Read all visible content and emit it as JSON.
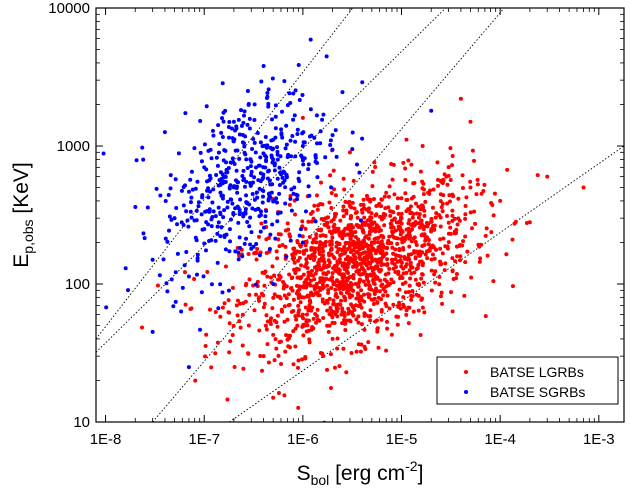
{
  "chart_data": {
    "type": "scatter",
    "xlabel_main": "S",
    "xlabel_sub": "bol",
    "xlabel_units": " [erg cm",
    "xlabel_sup": "-2",
    "xlabel_close": "]",
    "ylabel_main": "E",
    "ylabel_sub": "p,obs",
    "ylabel_units": " [KeV]",
    "x_scale": "log",
    "y_scale": "log",
    "xlim": [
      8e-09,
      0.0018
    ],
    "ylim": [
      10,
      10000
    ],
    "x_ticks": [
      {
        "value": 1e-08,
        "label": "1E-8"
      },
      {
        "value": 1e-07,
        "label": "1E-7"
      },
      {
        "value": 1e-06,
        "label": "1E-6"
      },
      {
        "value": 1e-05,
        "label": "1E-5"
      },
      {
        "value": 0.0001,
        "label": "1E-4"
      },
      {
        "value": 0.001,
        "label": "1E-3"
      }
    ],
    "y_ticks": [
      {
        "value": 10,
        "label": "10"
      },
      {
        "value": 100,
        "label": "100"
      },
      {
        "value": 1000,
        "label": "1000"
      },
      {
        "value": 10000,
        "label": "10000"
      }
    ],
    "grid": false,
    "legend_position": "bottom-right",
    "series": [
      {
        "name": "BATSE LGRBs",
        "color": "#ff0000",
        "n_points": 1500,
        "center_log_x": -5.45,
        "center_log_y": 2.15,
        "spread_log_x": 0.58,
        "spread_log_y": 0.3,
        "correlation": 0.45,
        "sample_points": [
          [
            2e-06,
            120
          ],
          [
            5e-06,
            200
          ],
          [
            1e-05,
            300
          ],
          [
            3e-06,
            80
          ],
          [
            2e-05,
            250
          ],
          [
            5e-05,
            500
          ],
          [
            0.0001,
            400
          ],
          [
            0.0003,
            600
          ],
          [
            0.0007,
            500
          ],
          [
            5e-07,
            15
          ],
          [
            2e-06,
            40
          ],
          [
            1e-06,
            60
          ],
          [
            4e-07,
            30
          ],
          [
            8e-06,
            150
          ],
          [
            1.5e-05,
            100
          ],
          [
            5e-05,
            1500
          ],
          [
            4e-05,
            2200
          ],
          [
            1e-06,
            1600
          ],
          [
            3e-06,
            900
          ],
          [
            0.0002,
            280
          ]
        ]
      },
      {
        "name": "BATSE SGRBs",
        "color": "#0000ff",
        "n_points": 500,
        "center_log_x": -6.6,
        "center_log_y": 2.75,
        "spread_log_x": 0.42,
        "spread_log_y": 0.34,
        "correlation": 0.4,
        "sample_points": [
          [
            1e-07,
            700
          ],
          [
            2e-07,
            500
          ],
          [
            5e-07,
            800
          ],
          [
            1e-06,
            1000
          ],
          [
            3e-08,
            150
          ],
          [
            5e-08,
            300
          ],
          [
            1e-07,
            250
          ],
          [
            2e-07,
            1500
          ],
          [
            4e-07,
            3800
          ],
          [
            1.2e-06,
            5900
          ],
          [
            4e-06,
            2900
          ],
          [
            2e-05,
            1800
          ],
          [
            1.6e-08,
            130
          ],
          [
            3e-08,
            45
          ],
          [
            7e-08,
            25
          ],
          [
            1e-06,
            200
          ],
          [
            5e-07,
            100
          ],
          [
            3e-07,
            180
          ],
          [
            2e-06,
            1200
          ],
          [
            8e-07,
            2400
          ]
        ]
      }
    ],
    "reference_lines": [
      {
        "style": "dotted",
        "from": [
          8e-09,
          40
        ],
        "to": [
          3.2e-06,
          10000
        ]
      },
      {
        "style": "dotted",
        "from": [
          8e-09,
          32
        ],
        "to": [
          2.8e-05,
          10000
        ]
      },
      {
        "style": "dotted",
        "from": [
          3e-08,
          10
        ],
        "to": [
          0.00011,
          10000
        ]
      },
      {
        "style": "dotted",
        "from": [
          1.8e-07,
          10
        ],
        "to": [
          0.0018,
          1000
        ]
      }
    ]
  }
}
